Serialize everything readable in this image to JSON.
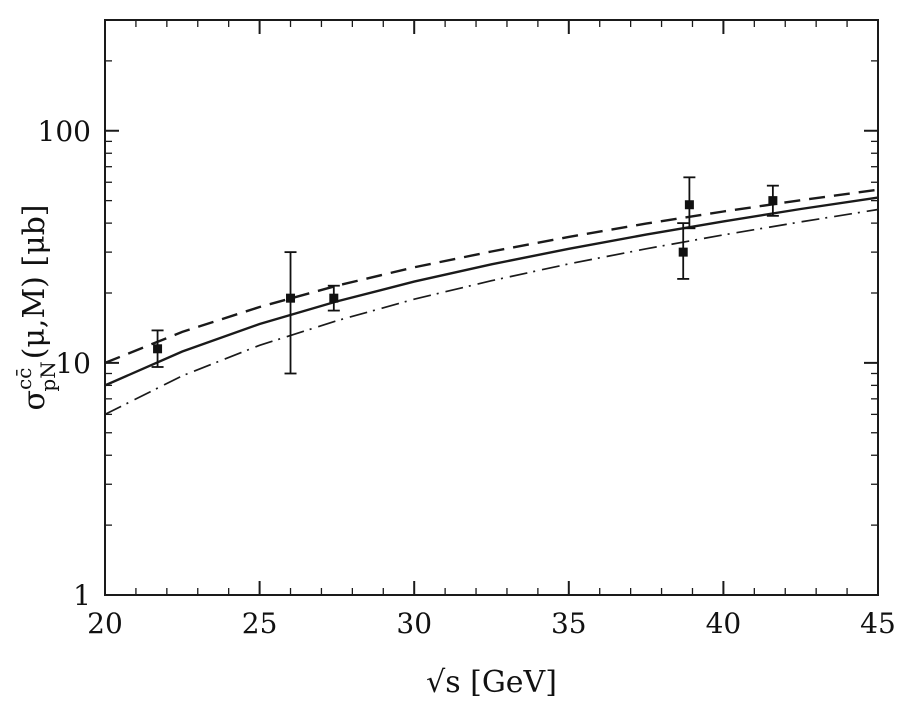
{
  "figure": {
    "background": "#ffffff",
    "frame_color": "#1a1a1a",
    "curve_color": "#1a1a1a",
    "marker_color": "#111111"
  },
  "chart_data": {
    "type": "line",
    "title": "",
    "xlabel": "√s [GeV]",
    "ylabel_parts": {
      "base": "σ",
      "sup": "cc̄",
      "sub": "pN",
      "suffix": "(μ,M)",
      "unit": " [μb]"
    },
    "xlim": [
      20,
      45
    ],
    "ylim": [
      1,
      300
    ],
    "yscale": "log",
    "x_major_ticks": [
      20,
      25,
      30,
      35,
      40,
      45
    ],
    "x_minor_step": 1,
    "y_major_ticks": [
      1,
      10,
      100
    ],
    "grid": false,
    "legend": "none",
    "x": [
      20,
      22.5,
      25,
      27.5,
      30,
      32.5,
      35,
      37.5,
      40,
      42.5,
      45
    ],
    "series": [
      {
        "name": "upper-bound-curve",
        "style": "dashed",
        "line_width": 2.4,
        "values": [
          10.0,
          13.6,
          17.4,
          21.5,
          25.8,
          30.2,
          34.9,
          39.8,
          44.9,
          50.2,
          55.7
        ]
      },
      {
        "name": "central-curve",
        "style": "solid",
        "line_width": 2.4,
        "values": [
          8.0,
          11.2,
          14.7,
          18.4,
          22.4,
          26.6,
          31.0,
          35.7,
          40.7,
          46.0,
          51.5
        ]
      },
      {
        "name": "lower-bound-curve",
        "style": "dashdot",
        "line_width": 1.7,
        "values": [
          6.0,
          8.8,
          11.9,
          15.2,
          18.8,
          22.6,
          26.7,
          31.0,
          35.6,
          40.5,
          45.8
        ]
      }
    ],
    "data_points": [
      {
        "x": 21.7,
        "y": 11.5,
        "ylo": 9.6,
        "yhi": 13.8
      },
      {
        "x": 26.0,
        "y": 19.0,
        "ylo": 9.0,
        "yhi": 30.0
      },
      {
        "x": 27.4,
        "y": 19.0,
        "ylo": 16.8,
        "yhi": 21.5
      },
      {
        "x": 38.7,
        "y": 30.0,
        "ylo": 23.0,
        "yhi": 40.0
      },
      {
        "x": 38.9,
        "y": 48.0,
        "ylo": 38.0,
        "yhi": 63.0
      },
      {
        "x": 41.6,
        "y": 50.0,
        "ylo": 43.0,
        "yhi": 58.0
      }
    ]
  }
}
